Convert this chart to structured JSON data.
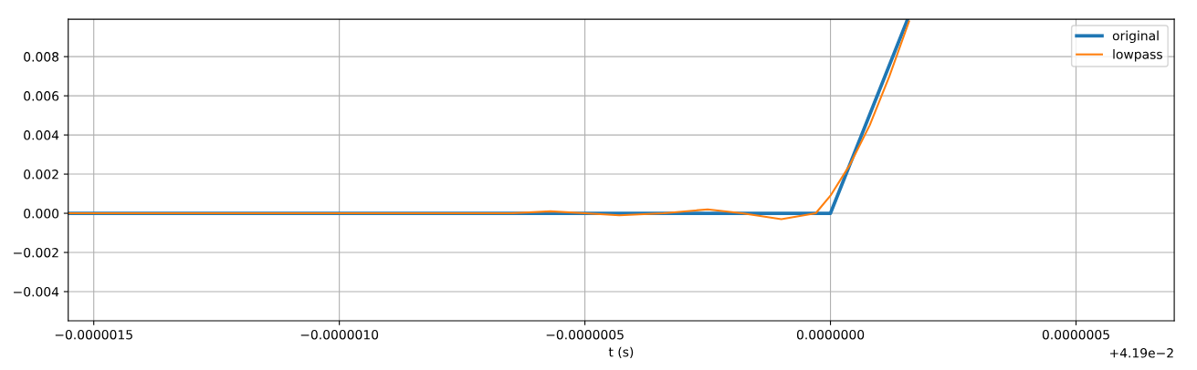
{
  "chart_data": {
    "type": "line",
    "xlabel": "t (s)",
    "annotations": [
      "+4.19e−2"
    ],
    "xlim": [
      -1.552e-06,
      7e-07
    ],
    "ylim": [
      -0.00549,
      0.00991
    ],
    "xticks": [
      {
        "value": -1.5e-06,
        "label": "−0.0000015"
      },
      {
        "value": -1e-06,
        "label": "−0.0000010"
      },
      {
        "value": -5e-07,
        "label": "−0.0000005"
      },
      {
        "value": 0,
        "label": "0.0000000"
      },
      {
        "value": 5e-07,
        "label": "0.0000005"
      }
    ],
    "yticks": [
      {
        "value": -0.004,
        "label": "−0.004"
      },
      {
        "value": -0.002,
        "label": "−0.002"
      },
      {
        "value": 0,
        "label": "0.000"
      },
      {
        "value": 0.002,
        "label": "0.002"
      },
      {
        "value": 0.004,
        "label": "0.004"
      },
      {
        "value": 0.006,
        "label": "0.006"
      },
      {
        "value": 0.008,
        "label": "0.008"
      }
    ],
    "grid": true,
    "legend": "top right",
    "series": [
      {
        "name": "original",
        "color": "#1f77b4",
        "x": [
          -1.552e-06,
          0,
          1.57e-07
        ],
        "values": [
          0,
          0,
          0.0099
        ]
      },
      {
        "name": "lowpass",
        "color": "#ff7f0e",
        "x": [
          -1.552e-06,
          -6.5e-07,
          -5.7e-07,
          -5e-07,
          -4.3e-07,
          -3.4e-07,
          -2.5e-07,
          -1.8e-07,
          -1e-07,
          -3e-08,
          0,
          4e-08,
          8e-08,
          1.2e-07,
          1.6e-07
        ],
        "values": [
          0,
          0,
          0.0001,
          0,
          -0.0001,
          0,
          0.0002,
          0,
          -0.0003,
          0,
          0.0009,
          0.0025,
          0.0045,
          0.007,
          0.0098
        ]
      }
    ]
  }
}
